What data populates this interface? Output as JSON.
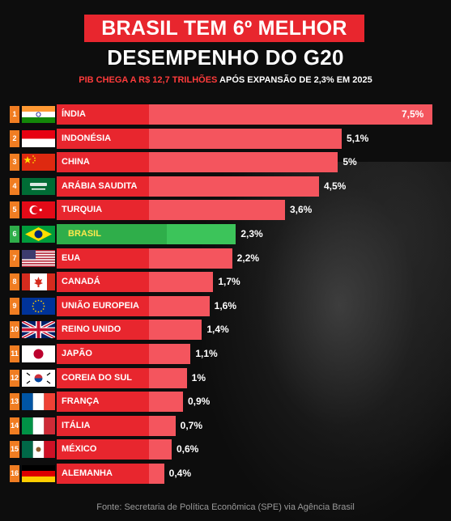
{
  "header": {
    "title_line1": "BRASIL TEM 6º MELHOR",
    "title_line2": "DESEMPENHO DO G20",
    "subtitle_red": "PIB CHEGA A R$ 12,7 TRILHÕES",
    "subtitle_white": " APÓS EXPANSÃO DE 2,3% EM 2025"
  },
  "colors": {
    "accent_red": "#e8262e",
    "bar_red": "#f4555e",
    "band_red": "#e8262e",
    "highlight_green": "#2fae4a",
    "highlight_bar_green": "#3cc45a"
  },
  "chart_data": {
    "type": "bar",
    "orientation": "horizontal",
    "categories": [
      "ÍNDIA",
      "INDONÉSIA",
      "CHINA",
      "ARÁBIA SAUDITA",
      "TURQUIA",
      "BRASIL",
      "EUA",
      "CANADÁ",
      "UNIÃO EUROPEIA",
      "REINO UNIDO",
      "JAPÃO",
      "COREIA DO SUL",
      "FRANÇA",
      "ITÁLIA",
      "MÉXICO",
      "ALEMANHA"
    ],
    "ranks": [
      "1",
      "2",
      "3",
      "4",
      "5",
      "6",
      "7",
      "8",
      "9",
      "10",
      "11",
      "12",
      "13",
      "14",
      "15",
      "16"
    ],
    "values": [
      7.5,
      5.1,
      5.0,
      4.5,
      3.6,
      2.3,
      2.2,
      1.7,
      1.6,
      1.4,
      1.1,
      1.0,
      0.9,
      0.7,
      0.6,
      0.4
    ],
    "value_labels": [
      "7,5%",
      "5,1%",
      "5%",
      "4,5%",
      "3,6%",
      "2,3%",
      "2,2%",
      "1,7%",
      "1,6%",
      "1,4%",
      "1,1%",
      "1%",
      "0,9%",
      "0,7%",
      "0,6%",
      "0,4%"
    ],
    "flags": [
      "india-flag-icon",
      "indonesia-flag-icon",
      "china-flag-icon",
      "saudi-arabia-flag-icon",
      "turkey-flag-icon",
      "brazil-flag-icon",
      "usa-flag-icon",
      "canada-flag-icon",
      "eu-flag-icon",
      "uk-flag-icon",
      "japan-flag-icon",
      "south-korea-flag-icon",
      "france-flag-icon",
      "italy-flag-icon",
      "mexico-flag-icon",
      "germany-flag-icon"
    ],
    "highlight": "BRASIL",
    "xlim": [
      0,
      7.5
    ],
    "grid": false
  },
  "footer": {
    "source": "Fonte: Secretaria de Política Econômica (SPE) via Agência Brasil"
  }
}
